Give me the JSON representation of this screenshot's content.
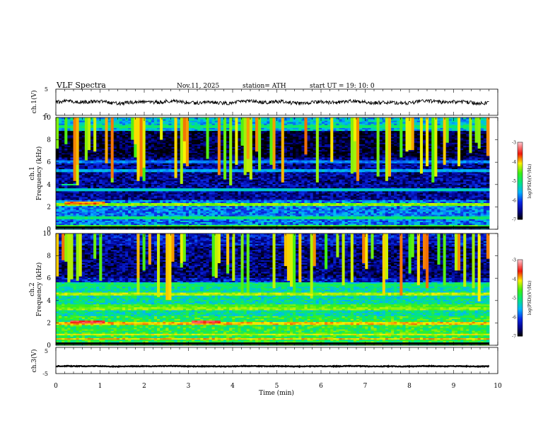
{
  "header": {
    "title": "VLF  Spectra",
    "date": "Nov.11, 2025",
    "station": "station= ATH",
    "start": "start  UT  =    19: 10: 0"
  },
  "chart_data": [
    {
      "type": "line",
      "name": "ch1-waveform",
      "ylabel": "ch.1(V)",
      "ylim": [
        -5,
        5
      ],
      "y_ticks": [
        "5",
        "-5"
      ],
      "x_range_min": [
        0,
        9.8
      ],
      "mean_level_v": 0.0,
      "amplitude_v_approx": 1.0
    },
    {
      "type": "heatmap",
      "name": "ch1-spectrogram",
      "ylabel": "ch.1",
      "ylabel2": "Frequency  (kHz)",
      "ylim_khz": [
        0,
        10
      ],
      "y_ticks": [
        "0",
        "2",
        "4",
        "6",
        "8",
        "10"
      ],
      "x_range_min": [
        0,
        9.8
      ],
      "colorbar": {
        "label": "log(PSD)(V²/Hz)",
        "range": [
          -7,
          -3
        ],
        "ticks": [
          "-3",
          "-4",
          "-5",
          "-6",
          "-7"
        ]
      },
      "bands": [
        {
          "f_khz": 0.3,
          "level": -4.6
        },
        {
          "f_khz": 1.1,
          "level": -5.0
        },
        {
          "f_khz": 2.2,
          "level": -4.4
        },
        {
          "f_khz": 2.4,
          "level": -3.8,
          "t_min": [
            0.2,
            1.1
          ]
        },
        {
          "f_khz": 3.6,
          "level": -5.4
        },
        {
          "f_khz": 4.0,
          "level": -5.0,
          "t_min": [
            0.15,
            0.55
          ]
        },
        {
          "f_khz": 5.3,
          "level": -5.6
        },
        {
          "f_khz": 6.0,
          "level": -5.8
        },
        {
          "f_khz": 9.2,
          "level": -5.0
        }
      ]
    },
    {
      "type": "heatmap",
      "name": "ch2-spectrogram",
      "ylabel": "ch.2",
      "ylabel2": "Frequency  (kHz)",
      "ylim_khz": [
        0,
        10
      ],
      "y_ticks": [
        "0",
        "2",
        "4",
        "6",
        "8",
        "10"
      ],
      "x_range_min": [
        0,
        9.8
      ],
      "colorbar": {
        "label": "log(PSD)(V²/Hz)",
        "range": [
          -7,
          -3
        ],
        "ticks": [
          "-3",
          "-4",
          "-5",
          "-6",
          "-7"
        ]
      },
      "bands": [
        {
          "f_khz": 0.6,
          "level": -4.0
        },
        {
          "f_khz": 1.0,
          "level": -4.2
        },
        {
          "f_khz": 2.0,
          "level": -4.0
        },
        {
          "f_khz": 2.1,
          "level": -3.5,
          "t_min": [
            0.3,
            1.1
          ]
        },
        {
          "f_khz": 2.1,
          "level": -3.5,
          "t_min": [
            3.1,
            3.7
          ]
        },
        {
          "f_khz": 3.3,
          "level": -4.4
        },
        {
          "f_khz": 3.6,
          "level": -4.6
        },
        {
          "f_khz": 4.6,
          "level": -4.3
        },
        {
          "f_khz": 5.4,
          "level": -5.0
        }
      ]
    },
    {
      "type": "line",
      "name": "ch3-waveform",
      "ylabel": "ch.3(V)",
      "ylim": [
        -5,
        5
      ],
      "y_ticks": [
        "5",
        "0",
        "-5"
      ],
      "x_range_min": [
        0,
        9.8
      ],
      "mean_level_v": -2.2,
      "amplitude_v_approx": 0.3
    }
  ],
  "x_axis": {
    "label": "Time  (min)",
    "ticks": [
      "0",
      "1",
      "2",
      "3",
      "4",
      "5",
      "6",
      "7",
      "8",
      "9",
      "10"
    ],
    "range_min": [
      0,
      10
    ]
  }
}
